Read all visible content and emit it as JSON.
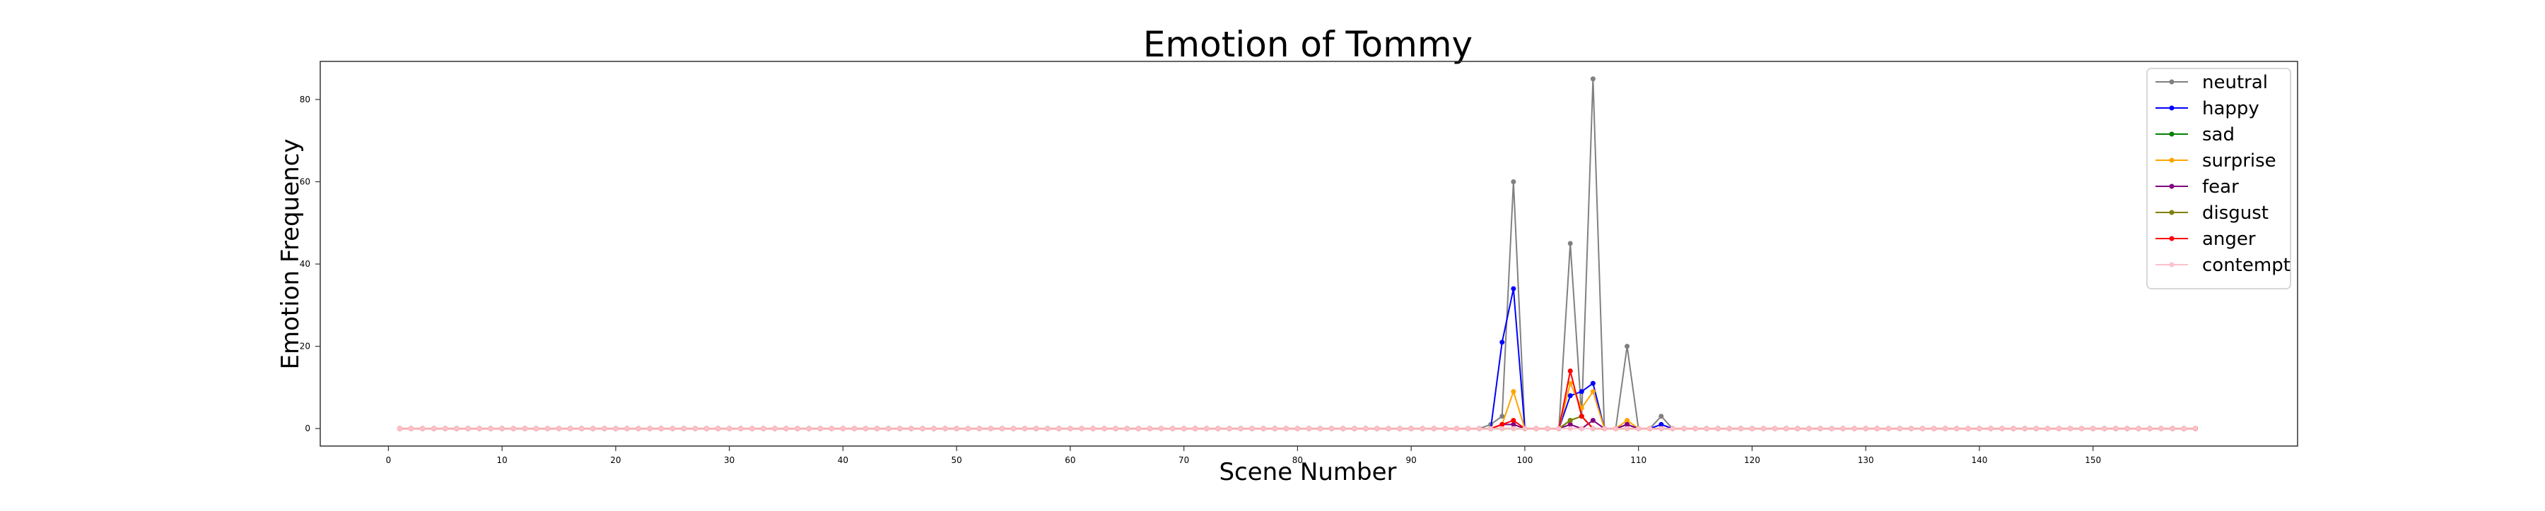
{
  "chart_data": {
    "type": "line",
    "title": "Emotion of Tommy",
    "xlabel": "Scene Number",
    "ylabel": "Emotion Frequency",
    "xlim": [
      -6,
      168
    ],
    "ylim": [
      -4.25,
      89.25
    ],
    "xticks": [
      0,
      10,
      20,
      30,
      40,
      50,
      60,
      70,
      80,
      90,
      100,
      110,
      120,
      130,
      140,
      150
    ],
    "yticks": [
      0,
      20,
      40,
      60,
      80
    ],
    "x_start": 1,
    "x_end": 159,
    "grid": false,
    "legend_position": "top-right",
    "series": [
      {
        "name": "neutral",
        "color": "#808080",
        "nonzero": {
          "97": 1,
          "98": 3,
          "99": 60,
          "104": 45,
          "105": 3,
          "106": 85,
          "109": 20,
          "112": 3
        }
      },
      {
        "name": "happy",
        "color": "#0000ff",
        "nonzero": {
          "98": 21,
          "99": 34,
          "104": 8,
          "105": 9,
          "106": 11,
          "109": 1,
          "112": 1
        }
      },
      {
        "name": "sad",
        "color": "#008000",
        "nonzero": {
          "104": 2,
          "105": 3
        }
      },
      {
        "name": "surprise",
        "color": "#ffa500",
        "nonzero": {
          "98": 1,
          "99": 9,
          "104": 11,
          "105": 5,
          "106": 9,
          "109": 2
        }
      },
      {
        "name": "fear",
        "color": "#800080",
        "nonzero": {
          "98": 1,
          "99": 1,
          "104": 1,
          "106": 2,
          "109": 1
        }
      },
      {
        "name": "disgust",
        "color": "#808000",
        "nonzero": {
          "104": 2,
          "105": 3
        }
      },
      {
        "name": "anger",
        "color": "#ff0000",
        "nonzero": {
          "98": 1,
          "99": 2,
          "104": 14,
          "105": 3
        }
      },
      {
        "name": "contempt",
        "color": "#ffc0cb",
        "nonzero": {}
      }
    ]
  }
}
